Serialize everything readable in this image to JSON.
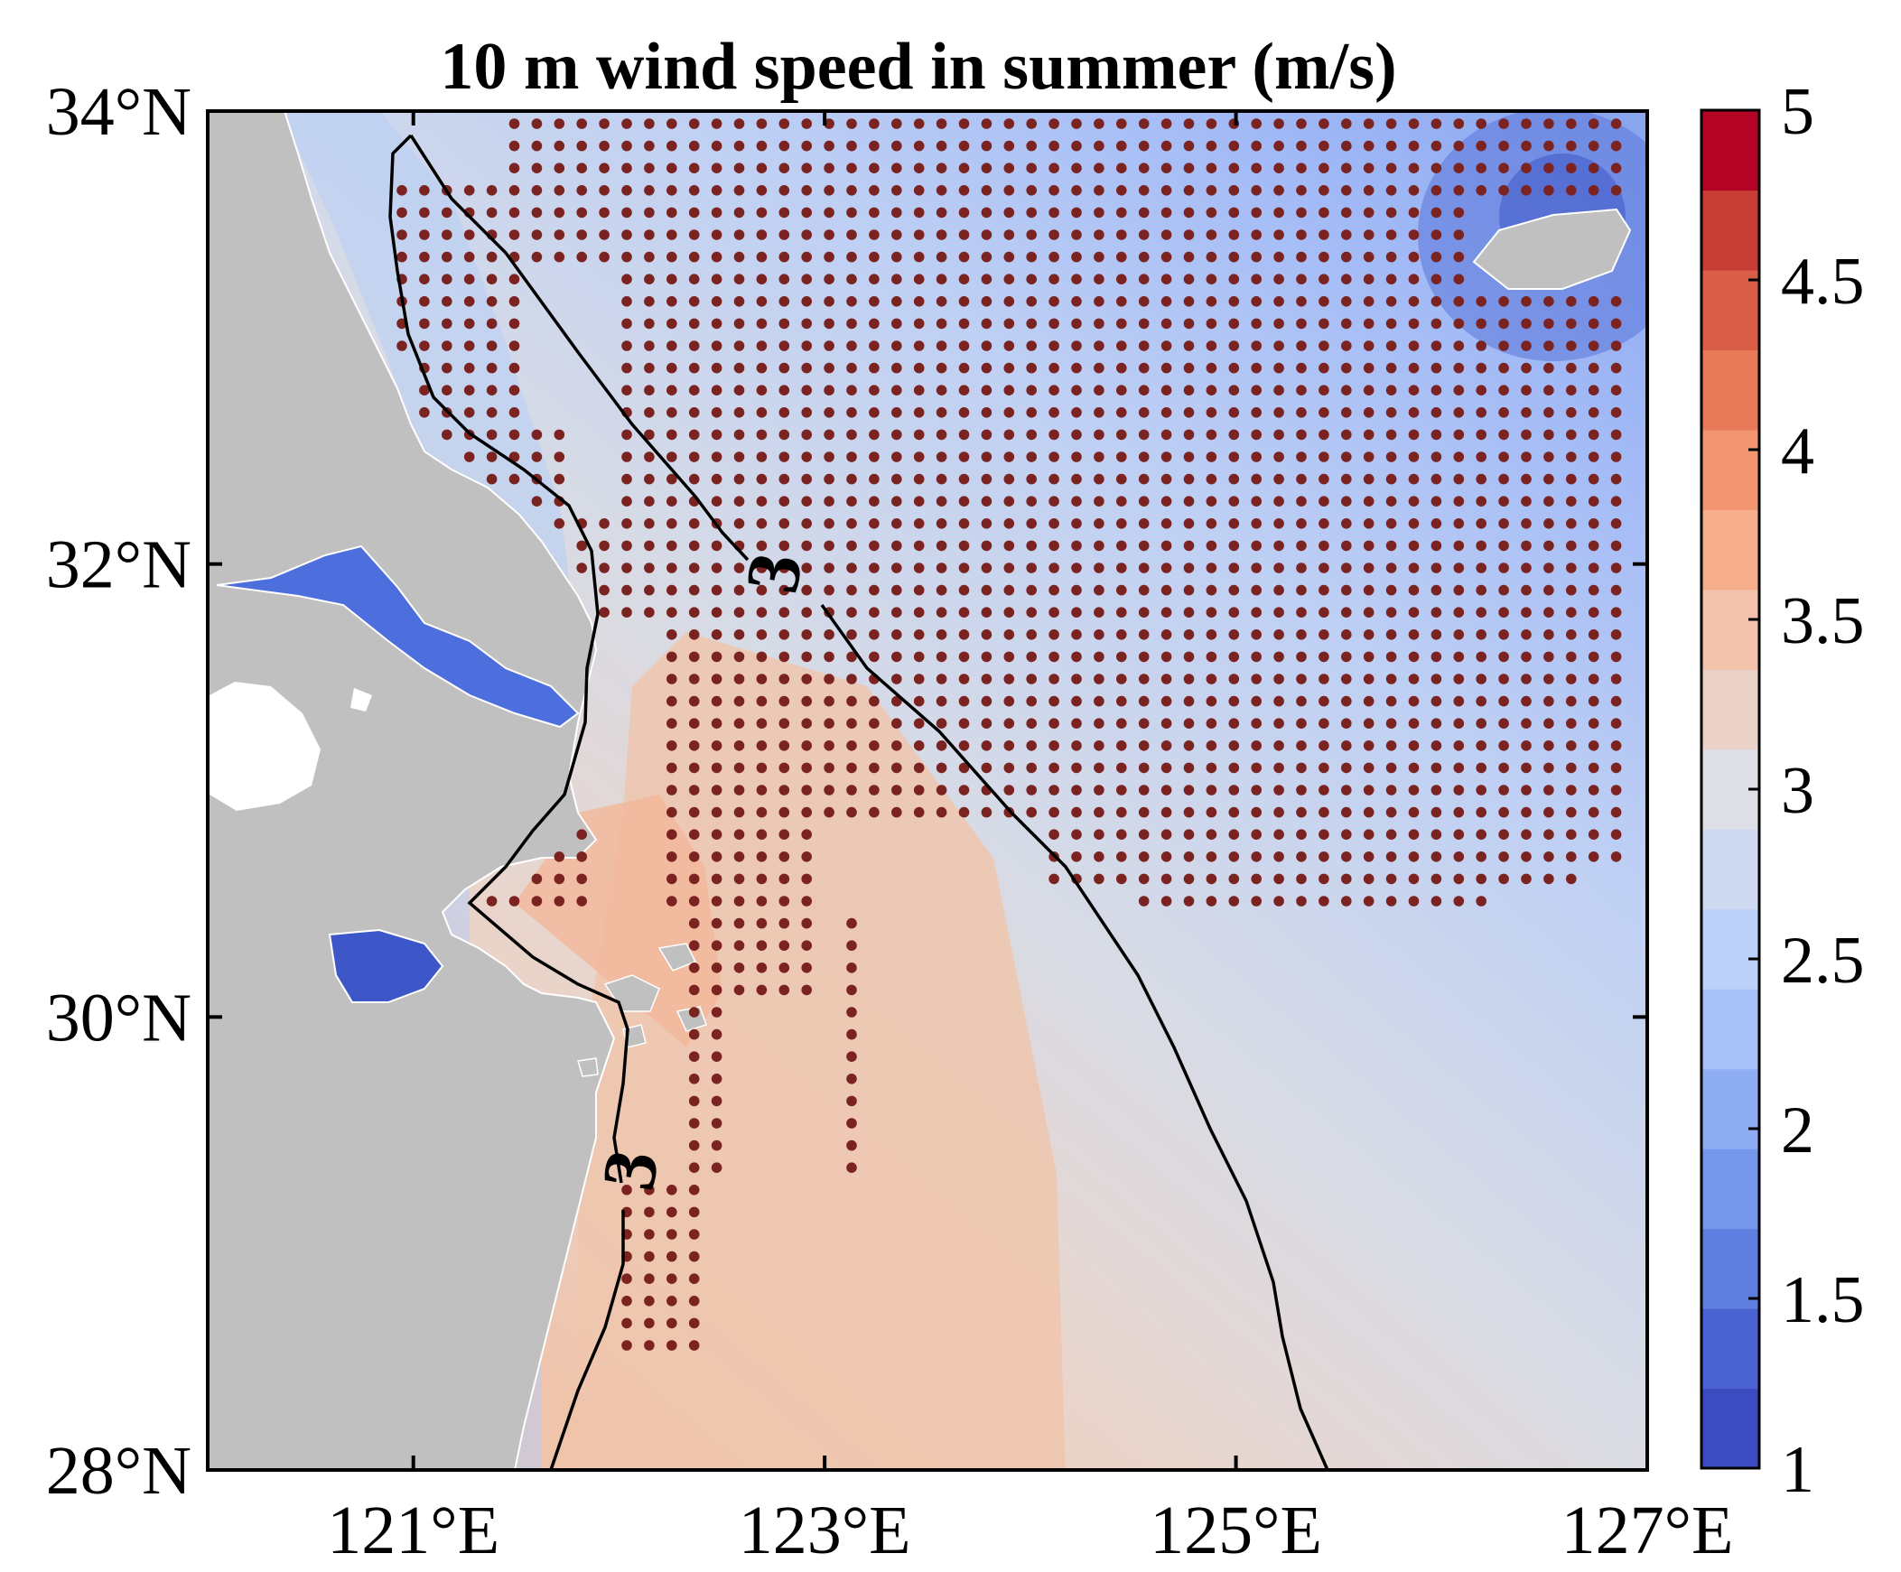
{
  "title": "10 m wind speed in summer (m/s)",
  "axes": {
    "lon_ticks": [
      {
        "value": 121,
        "label": "121°E"
      },
      {
        "value": 123,
        "label": "123°E"
      },
      {
        "value": 125,
        "label": "125°E"
      },
      {
        "value": 127,
        "label": "127°E"
      }
    ],
    "lat_ticks": [
      {
        "value": 34,
        "label": "34°N"
      },
      {
        "value": 32,
        "label": "32°N"
      },
      {
        "value": 30,
        "label": "30°N"
      },
      {
        "value": 28,
        "label": "28°N"
      }
    ],
    "lon_range": [
      120,
      127
    ],
    "lat_range": [
      28,
      34
    ]
  },
  "colorbar": {
    "min": 1,
    "max": 5,
    "step": 0.25,
    "tick_labels": [
      "5",
      "4.5",
      "4",
      "3.5",
      "3",
      "2.5",
      "2",
      "1.5",
      "1"
    ],
    "colors": [
      "#3b4cc0",
      "#4b62d2",
      "#5e7fe0",
      "#7597eb",
      "#8eadf3",
      "#a5c1f8",
      "#bcd1f9",
      "#cfd9f2",
      "#dedfe6",
      "#ead2c8",
      "#f2c3aa",
      "#f5ad8c",
      "#f19670",
      "#e87a59",
      "#d95e48",
      "#c73d36",
      "#b40426"
    ]
  },
  "contour_labels": [
    "3",
    "3"
  ],
  "chart_data": {
    "type": "heatmap",
    "title": "10 m wind speed in summer (m/s)",
    "variable": "10 m wind speed",
    "units": "m/s",
    "xlim": [
      120,
      127
    ],
    "ylim": [
      28,
      34
    ],
    "contour_levels": [
      3
    ],
    "colorbar_range": [
      1,
      5
    ],
    "colorbar_step": 0.25,
    "stippling": "significant grid points",
    "land_color": "#c0c0c0",
    "stipple_color": "#7b2320"
  }
}
